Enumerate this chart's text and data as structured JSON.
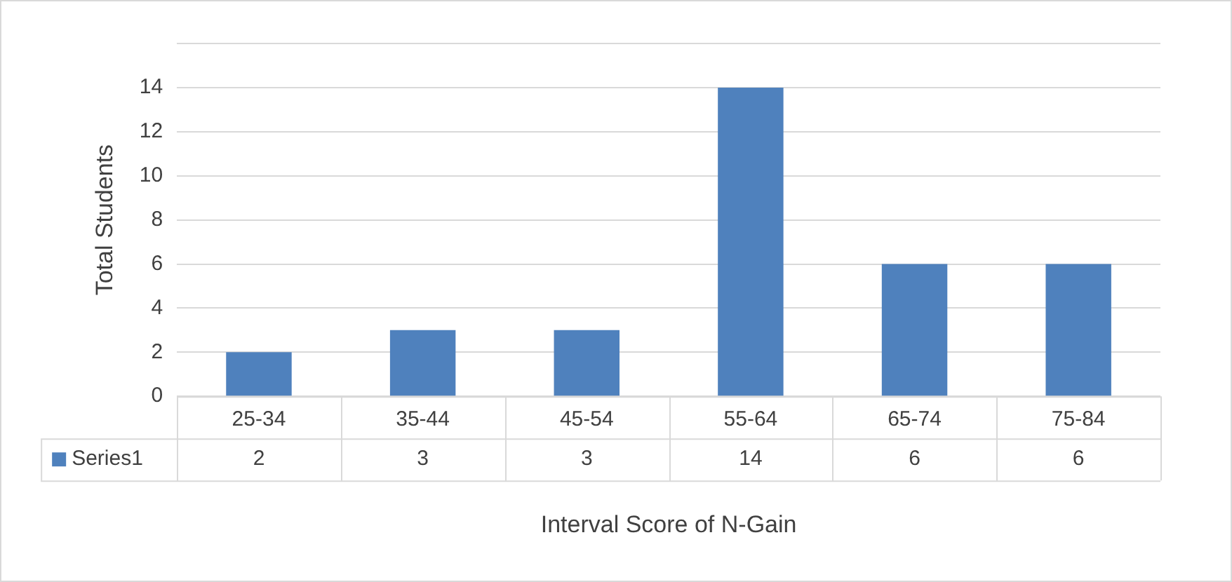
{
  "chart_data": {
    "type": "bar",
    "xlabel": "Interval Score of N-Gain",
    "ylabel": "Total Students",
    "categories": [
      "25-34",
      "35-44",
      "45-54",
      "55-64",
      "65-74",
      "75-84"
    ],
    "series": [
      {
        "name": "Series1",
        "color": "#4f81bd",
        "values": [
          2,
          3,
          3,
          14,
          6,
          6
        ]
      }
    ],
    "ylim": [
      0,
      16
    ],
    "yticks": [
      0,
      2,
      4,
      6,
      8,
      10,
      12,
      14,
      {
        "value": 16,
        "label": null
      }
    ],
    "grid": "y",
    "legend": "bottom left",
    "data_labels": true
  }
}
